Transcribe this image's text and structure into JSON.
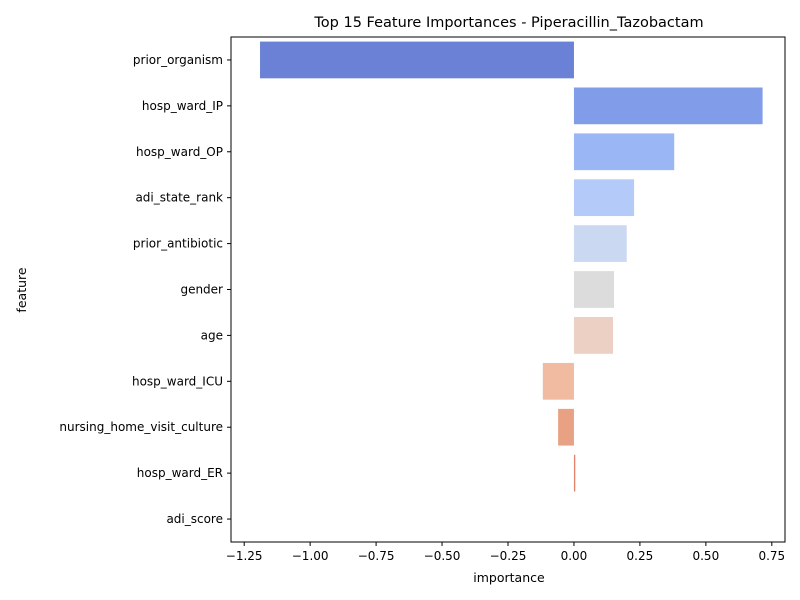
{
  "chart_data": {
    "type": "bar",
    "orientation": "horizontal",
    "title": "Top 15 Feature Importances - Piperacillin_Tazobactam",
    "xlabel": "importance",
    "ylabel": "feature",
    "xlim": [
      -1.3,
      0.8
    ],
    "xticks": [
      -1.25,
      -1.0,
      -0.75,
      -0.5,
      -0.25,
      0.0,
      0.25,
      0.5,
      0.75
    ],
    "xtick_labels": [
      "−1.25",
      "−1.00",
      "−0.75",
      "−0.50",
      "−0.25",
      "0.00",
      "0.25",
      "0.50",
      "0.75"
    ],
    "grid": false,
    "legend": "none",
    "categories": [
      "prior_organism",
      "hosp_ward_IP",
      "hosp_ward_OP",
      "adi_state_rank",
      "prior_antibiotic",
      "gender",
      "age",
      "hosp_ward_ICU",
      "nursing_home_visit_culture",
      "hosp_ward_ER",
      "adi_score"
    ],
    "values": [
      -1.19,
      0.715,
      0.38,
      0.228,
      0.2,
      0.152,
      0.148,
      -0.118,
      -0.06,
      0.005,
      0.0
    ],
    "colors": [
      "#6a81d6",
      "#819ce8",
      "#9bb6f4",
      "#b4caf9",
      "#cbd8f1",
      "#dcdcdc",
      "#ebd0c3",
      "#f0bba1",
      "#e9a183",
      "#e2826a",
      "#d65244"
    ]
  }
}
